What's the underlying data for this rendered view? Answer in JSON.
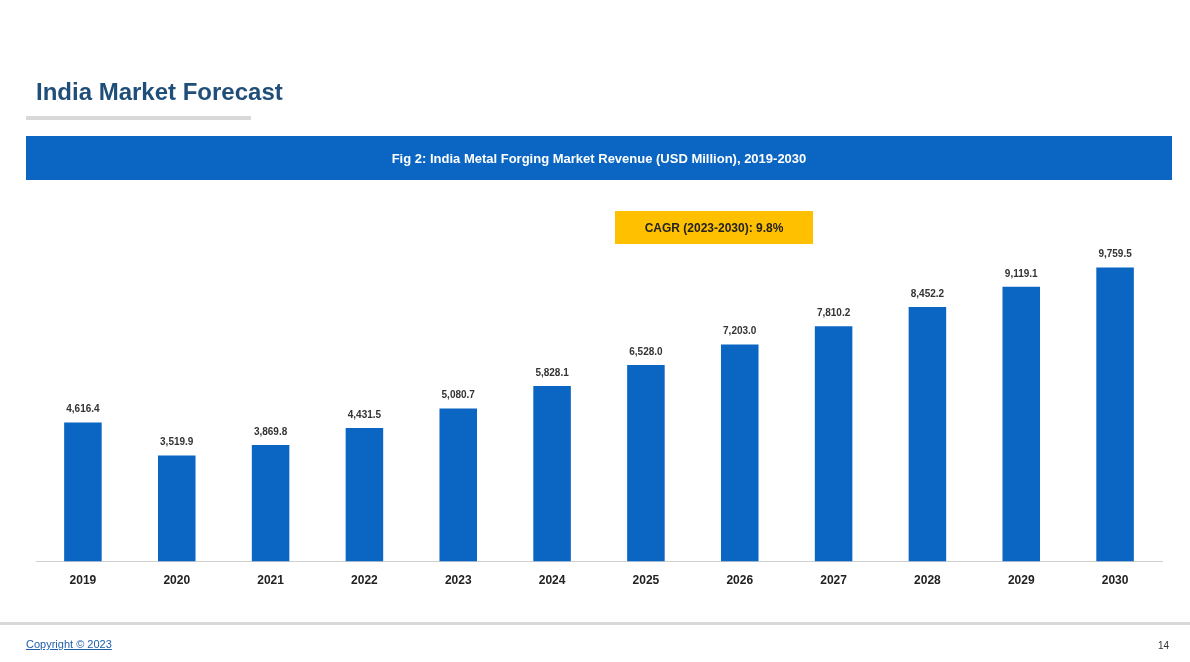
{
  "chart_data": {
    "type": "bar",
    "title": "India Market Forecast",
    "subtitle": "Fig 2: India Metal Forging Market Revenue (USD Million), 2019-2030",
    "categories": [
      "2019",
      "2020",
      "2021",
      "2022",
      "2023",
      "2024",
      "2025",
      "2026",
      "2027",
      "2028",
      "2029",
      "2030"
    ],
    "values": [
      4616.4,
      3519.9,
      3869.8,
      4431.5,
      5080.7,
      5828.1,
      6528.0,
      7203.0,
      7810.2,
      8452.2,
      9119.1,
      9759.5
    ],
    "value_labels": [
      "4,616.4",
      "3,519.9",
      "3,869.8",
      "4,431.5",
      "5,080.7",
      "5,828.1",
      "6,528.0",
      "7,203.0",
      "7,810.2",
      "8,452.2",
      "9,119.1",
      "9,759.5"
    ],
    "color": "#0a66c2",
    "grid": false,
    "legend": false,
    "annotations": [
      "CAGR (2023-2030): 9.8%",
      "Copyright © 2023",
      "14"
    ]
  }
}
